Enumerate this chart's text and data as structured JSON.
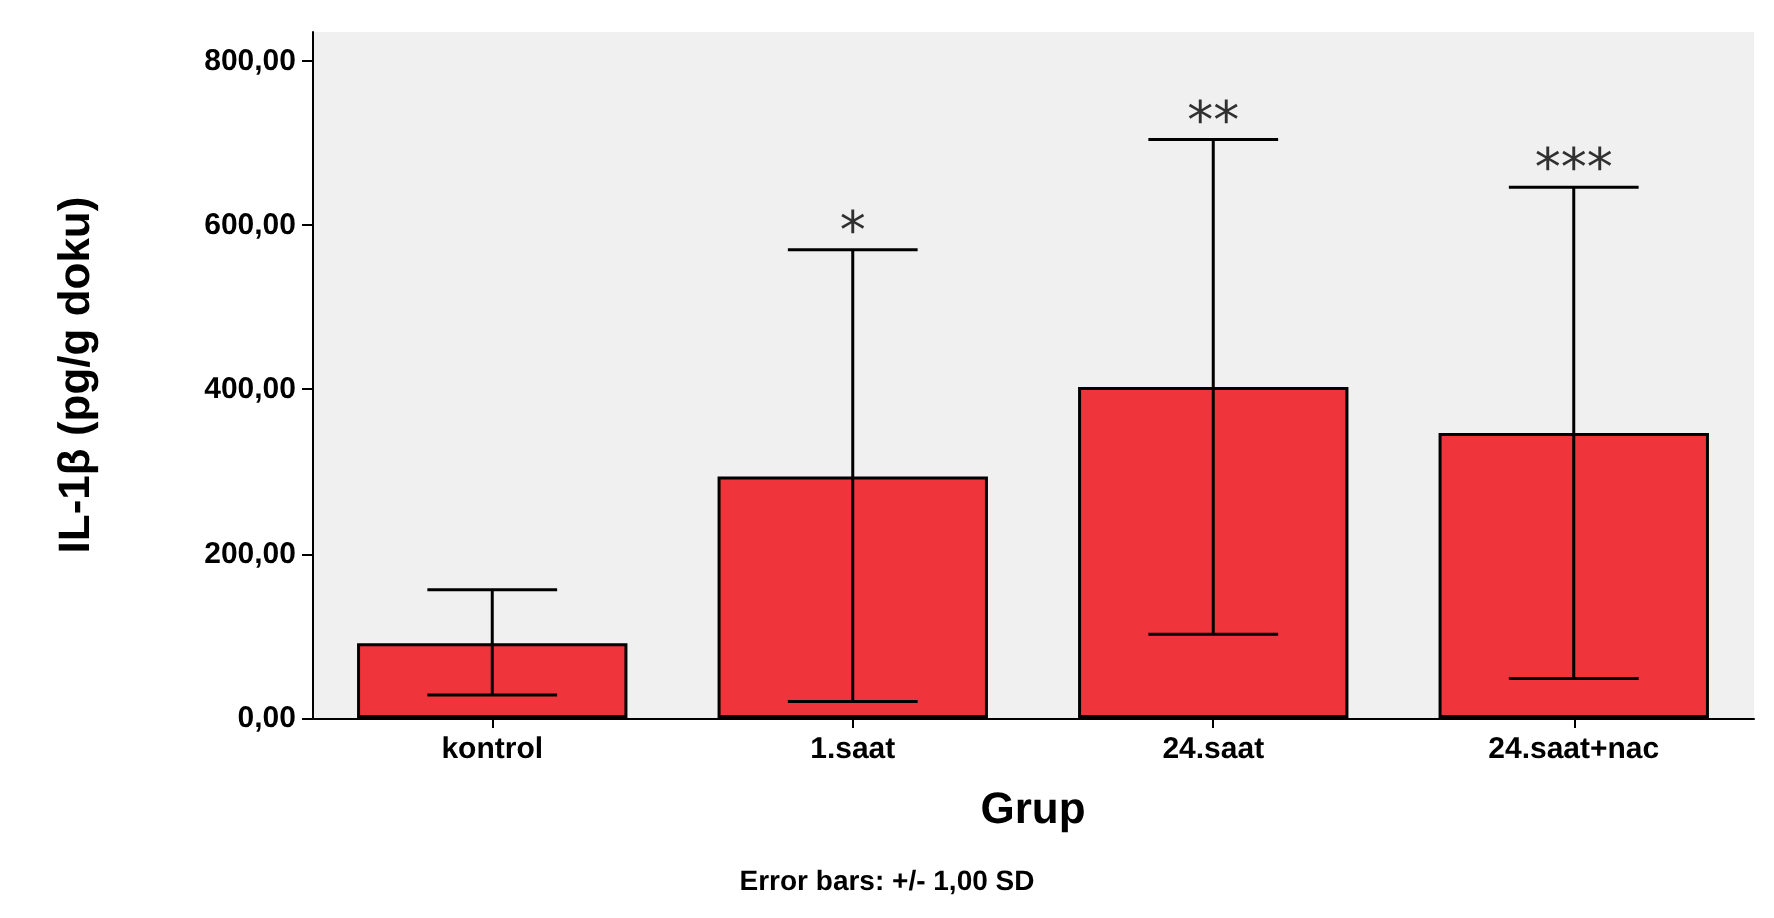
{
  "chart_data": {
    "type": "bar",
    "xlabel": "Grup",
    "ylabel": "IL-1β (pg/g doku)",
    "categories": [
      "kontrol",
      "1.saat",
      "24.saat",
      "24.saat+nac"
    ],
    "values": [
      91,
      294,
      403,
      347
    ],
    "errors": [
      [
        28,
        156
      ],
      [
        20,
        570
      ],
      [
        102,
        704
      ],
      [
        48,
        646
      ]
    ],
    "color": "#f0343c",
    "ylim": [
      0,
      835
    ],
    "yticks": [
      {
        "value": 0,
        "label": "0,00"
      },
      {
        "value": 200,
        "label": "200,00"
      },
      {
        "value": 400,
        "label": "400,00"
      },
      {
        "value": 600,
        "label": "600,00"
      },
      {
        "value": 800,
        "label": "800,00"
      }
    ],
    "grid": false,
    "annotations": [
      {
        "text": "*",
        "x": "1.saat",
        "y": 570
      },
      {
        "text": "**",
        "x": "24.saat",
        "y": 704
      },
      {
        "text": "***",
        "x": "24.saat+nac",
        "y": 646
      },
      "Error bars: +/- 1,00 SD"
    ]
  }
}
